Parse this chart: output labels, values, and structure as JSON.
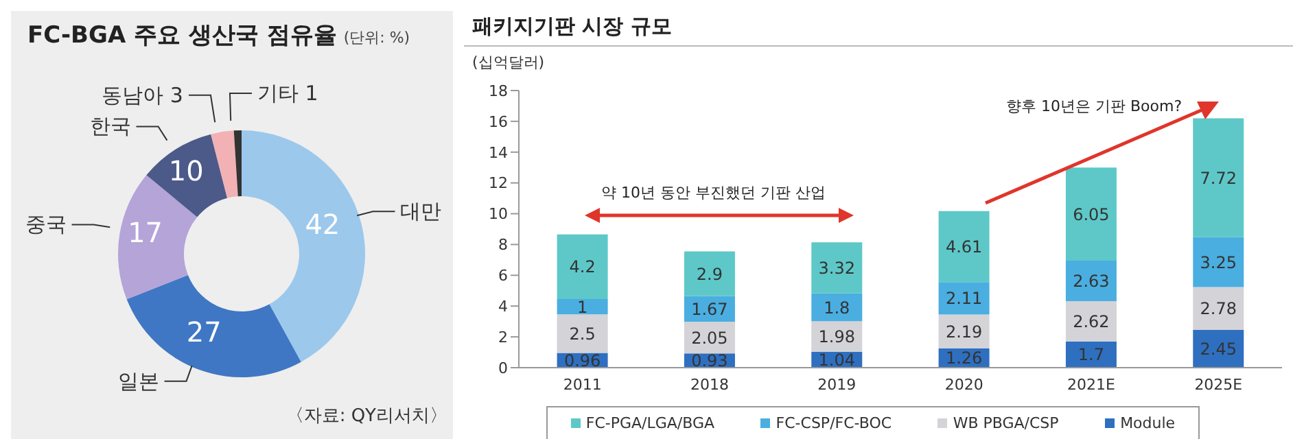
{
  "chart_data": [
    {
      "type": "donut",
      "title": "FC-BGA 주요 생산국 점유율",
      "subtitle": "(단위: %)",
      "categories": [
        "대만",
        "일본",
        "중국",
        "한국",
        "동남아",
        "기타"
      ],
      "values": [
        42,
        27,
        17,
        10,
        3,
        1
      ],
      "colors": [
        "#9cc8ec",
        "#3f77c4",
        "#b4a4d8",
        "#4c5a8a",
        "#f2b1b4",
        "#333333"
      ],
      "data_labels": true,
      "legend": false,
      "annotations": [
        "〈자료: QY리서치〉"
      ]
    },
    {
      "type": "bar",
      "title": "패키지기판 시장 규모",
      "ylabel": "(십억달러)",
      "stacked": true,
      "categories": [
        "2011",
        "2018",
        "2019",
        "2020",
        "2021E",
        "2025E"
      ],
      "series": [
        {
          "name": "Module",
          "color": "#2e6fc0",
          "values": [
            0.96,
            0.93,
            1.04,
            1.26,
            1.7,
            2.45
          ]
        },
        {
          "name": "WB PBGA/CSP",
          "color": "#d3d3d8",
          "values": [
            2.5,
            2.05,
            1.98,
            2.19,
            2.62,
            2.78
          ]
        },
        {
          "name": "FC-CSP/FC-BOC",
          "color": "#4aaee0",
          "values": [
            1,
            1.67,
            1.8,
            2.11,
            2.63,
            3.25
          ]
        },
        {
          "name": "FC-PGA/LGA/BGA",
          "color": "#5ec8c8",
          "values": [
            4.2,
            2.9,
            3.32,
            4.61,
            6.05,
            7.72
          ]
        }
      ],
      "ylim": [
        0,
        18
      ],
      "yticks": [
        0,
        2,
        4,
        6,
        8,
        10,
        12,
        14,
        16,
        18
      ],
      "grid": false,
      "legend": "bottom",
      "data_labels": true,
      "annotations": [
        "약 10년 동안 부진했던 기판 산업",
        "향후 10년은 기판 Boom?"
      ]
    }
  ]
}
